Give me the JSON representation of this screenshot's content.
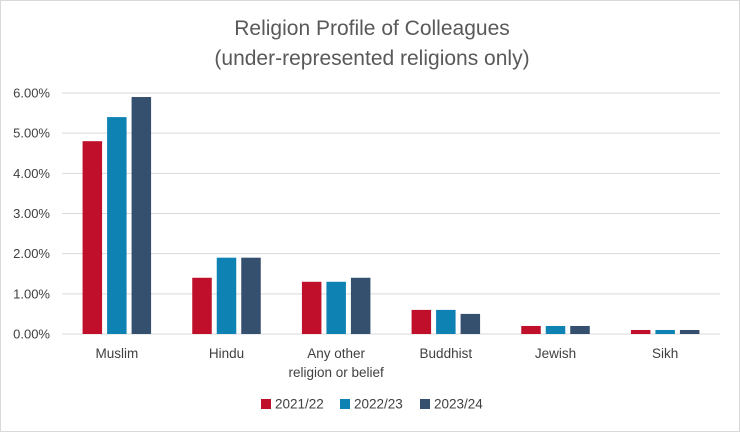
{
  "chart_data": {
    "type": "bar",
    "title": [
      "Religion Profile of Colleagues",
      "(under-represented religions only)"
    ],
    "categories": [
      [
        "Muslim"
      ],
      [
        "Hindu"
      ],
      [
        "Any other",
        "religion or belief"
      ],
      [
        "Buddhist"
      ],
      [
        "Jewish"
      ],
      [
        "Sikh"
      ]
    ],
    "series": [
      {
        "name": "2021/22",
        "color": "#c00f2a",
        "values": [
          4.8,
          1.4,
          1.3,
          0.6,
          0.2,
          0.1
        ]
      },
      {
        "name": "2022/23",
        "color": "#0f82b4",
        "values": [
          5.4,
          1.9,
          1.3,
          0.6,
          0.2,
          0.1
        ]
      },
      {
        "name": "2023/24",
        "color": "#354f6e",
        "values": [
          5.9,
          1.9,
          1.4,
          0.5,
          0.2,
          0.1
        ]
      }
    ],
    "yticks": [
      "0.00%",
      "1.00%",
      "2.00%",
      "3.00%",
      "4.00%",
      "5.00%",
      "6.00%"
    ],
    "ylim": [
      0,
      6
    ],
    "xlabel": "",
    "ylabel": "",
    "grid": true,
    "legend": "bottom"
  }
}
